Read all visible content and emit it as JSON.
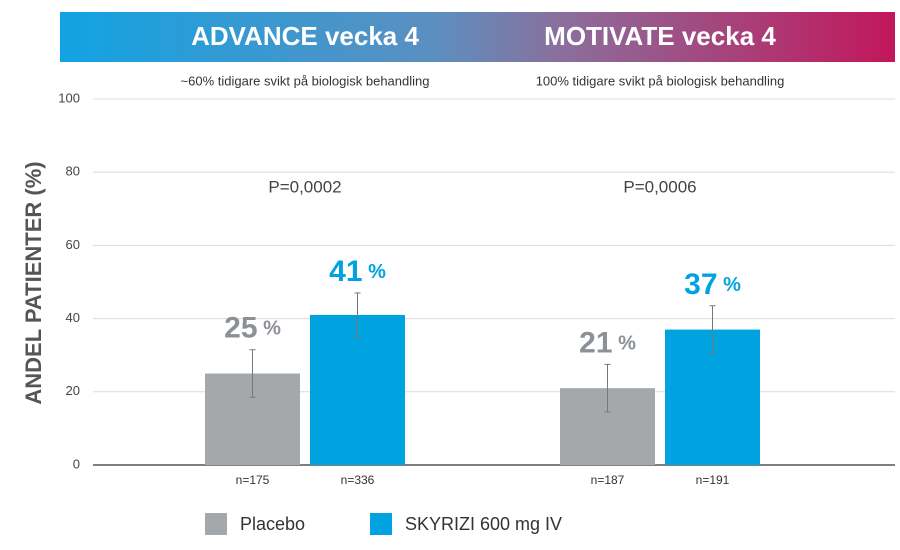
{
  "chart_data": {
    "type": "bar",
    "y_label": "ANDEL PATIENTER (%)",
    "categories": [
      "ADVANCE vecka 4",
      "MOTIVATE vecka 4"
    ],
    "subtitles": [
      "~60% tidigare svikt på biologisk behandling",
      "100% tidigare svikt på biologisk behandling"
    ],
    "p_values": [
      "P=0,0002",
      "P=0,0006"
    ],
    "series": [
      {
        "name": "Placebo",
        "color": "#a5a8ab",
        "label_color": "#8c9198",
        "values": [
          25,
          21
        ],
        "errors": [
          6.5,
          6.5
        ],
        "value_labels": [
          "25 %",
          "21 %"
        ],
        "n_labels": [
          "n=175",
          "n=187"
        ]
      },
      {
        "name": "SKYRIZI 600 mg IV",
        "color": "#00a3e0",
        "label_color": "#00a3e0",
        "values": [
          41,
          37
        ],
        "errors": [
          6,
          6.5
        ],
        "value_labels": [
          "41 %",
          "37 %"
        ],
        "n_labels": [
          "n=336",
          "n=191"
        ]
      }
    ],
    "ylim": [
      0,
      100
    ],
    "yticks": [
      0,
      20,
      40,
      60,
      80,
      100
    ],
    "grid": true
  }
}
